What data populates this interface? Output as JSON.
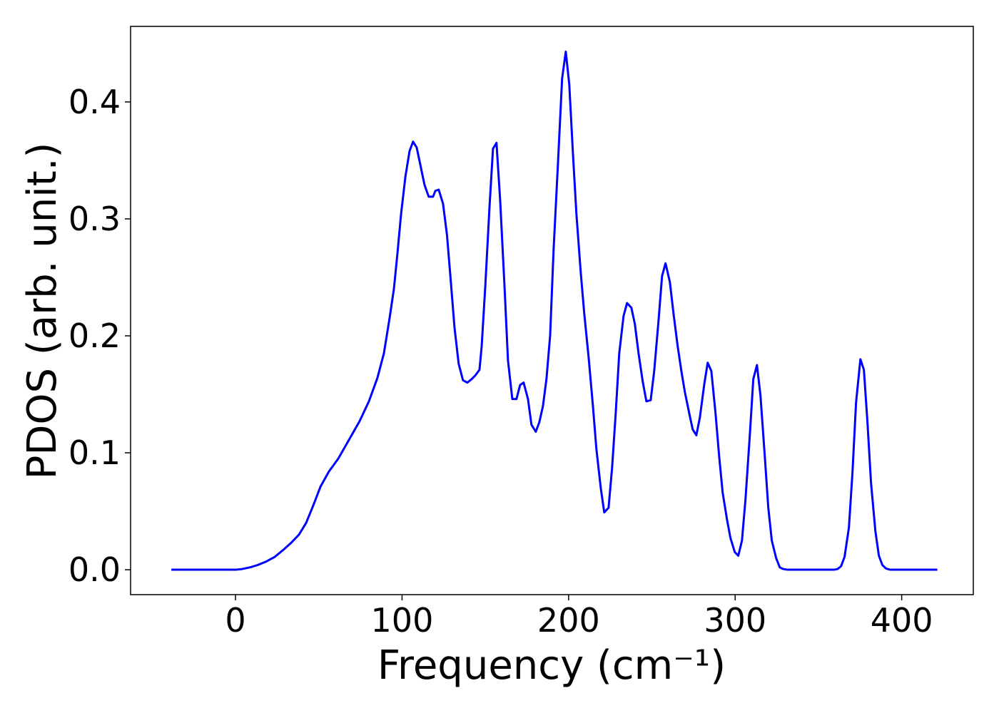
{
  "chart_data": {
    "type": "line",
    "xlabel": "Frequency (cm⁻¹)",
    "ylabel": "PDOS (arb. unit.)",
    "xlim": [
      -63,
      443
    ],
    "ylim": [
      -0.0213,
      0.4646
    ],
    "xticks": [
      0,
      100,
      200,
      300,
      400
    ],
    "yticks": [
      {
        "value": 0,
        "label": "0.0"
      },
      {
        "value": 0.1,
        "label": "0.1"
      },
      {
        "value": 0.2,
        "label": "0.2"
      },
      {
        "value": 0.3,
        "label": "0.3"
      },
      {
        "value": 0.4,
        "label": "0.4"
      }
    ],
    "grid": false,
    "series": [
      {
        "color": "#0000ff",
        "x": [
          -38.5,
          0,
          3.9,
          8.6,
          13.3,
          18.4,
          23.6,
          28.7,
          33.4,
          38.1,
          42.4,
          46.7,
          51,
          56.1,
          61.7,
          68.1,
          74.5,
          80.1,
          85.2,
          89.1,
          92.5,
          95.1,
          97.2,
          99.4,
          102,
          104.5,
          106.6,
          108.8,
          111.3,
          113.5,
          116,
          118.6,
          120,
          122,
          124.6,
          127,
          129.3,
          131.5,
          134,
          136.6,
          139.2,
          141.8,
          143.9,
          146.5,
          147.8,
          150,
          152.5,
          154.6,
          156.7,
          158.9,
          161.5,
          163.6,
          166.2,
          168.7,
          170.9,
          173,
          175.6,
          177.7,
          180.3,
          182.4,
          184.6,
          186.7,
          188.9,
          191,
          193.6,
          196.1,
          198.3,
          200.4,
          202.6,
          204.7,
          207.3,
          209.4,
          212,
          214.6,
          216.7,
          219.3,
          221.4,
          224,
          226.1,
          228.3,
          230.4,
          233,
          235.1,
          237.7,
          239.8,
          242,
          244.5,
          246.7,
          249.3,
          251.4,
          254,
          256.1,
          258.2,
          260.8,
          263,
          265.5,
          267.7,
          269.8,
          272.4,
          274.5,
          276.7,
          278.8,
          281.4,
          283.5,
          285.7,
          288.2,
          290.4,
          292.5,
          295.1,
          297.2,
          299.8,
          301.9,
          304.1,
          306.2,
          308.8,
          310.9,
          313.1,
          315.2,
          317.8,
          319.9,
          322,
          324.6,
          326.8,
          328.9,
          331.5,
          359.3,
          361.5,
          363.6,
          365.7,
          368.3,
          370.4,
          372.6,
          375.2,
          377.3,
          379.4,
          381.6,
          384.2,
          386.3,
          388.4,
          390.6,
          393.2,
          421.4
        ],
        "values": [
          0,
          0,
          0.0006,
          0.002,
          0.004,
          0.007,
          0.011,
          0.017,
          0.023,
          0.03,
          0.04,
          0.055,
          0.071,
          0.084,
          0.095,
          0.111,
          0.127,
          0.144,
          0.164,
          0.185,
          0.215,
          0.24,
          0.27,
          0.304,
          0.336,
          0.358,
          0.366,
          0.361,
          0.344,
          0.329,
          0.319,
          0.319,
          0.324,
          0.325,
          0.313,
          0.286,
          0.246,
          0.207,
          0.176,
          0.162,
          0.16,
          0.163,
          0.166,
          0.171,
          0.191,
          0.243,
          0.31,
          0.36,
          0.365,
          0.316,
          0.243,
          0.179,
          0.146,
          0.146,
          0.158,
          0.16,
          0.146,
          0.124,
          0.118,
          0.126,
          0.14,
          0.163,
          0.2,
          0.274,
          0.347,
          0.42,
          0.443,
          0.415,
          0.356,
          0.304,
          0.254,
          0.219,
          0.182,
          0.14,
          0.103,
          0.07,
          0.049,
          0.053,
          0.087,
          0.134,
          0.185,
          0.217,
          0.228,
          0.224,
          0.21,
          0.185,
          0.161,
          0.144,
          0.145,
          0.17,
          0.213,
          0.251,
          0.262,
          0.246,
          0.219,
          0.191,
          0.17,
          0.152,
          0.134,
          0.12,
          0.115,
          0.13,
          0.158,
          0.177,
          0.17,
          0.134,
          0.097,
          0.066,
          0.043,
          0.027,
          0.015,
          0.012,
          0.025,
          0.06,
          0.115,
          0.163,
          0.175,
          0.149,
          0.097,
          0.053,
          0.025,
          0.01,
          0.002,
          0.0006,
          0,
          0,
          0.0006,
          0.003,
          0.011,
          0.036,
          0.082,
          0.143,
          0.18,
          0.171,
          0.127,
          0.074,
          0.033,
          0.012,
          0.004,
          0.001,
          0,
          0
        ]
      }
    ]
  }
}
